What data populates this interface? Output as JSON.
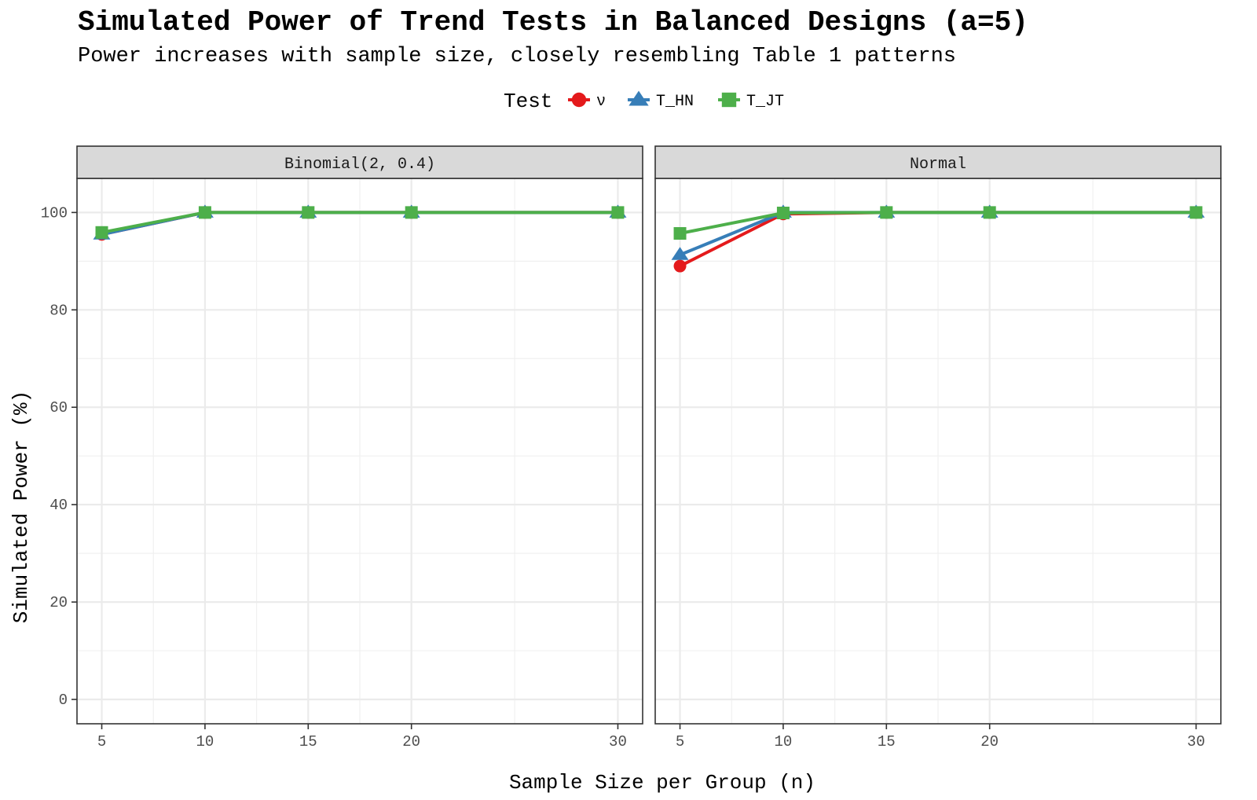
{
  "chart_data": {
    "type": "line",
    "title": "Simulated Power of Trend Tests in Balanced Designs (a=5)",
    "subtitle": "Power increases with sample size, closely resembling Table 1 patterns",
    "xlabel": "Sample Size per Group (n)",
    "ylabel": "Simulated Power (%)",
    "legend": {
      "title": "Test",
      "placement": "top",
      "entries": [
        {
          "label": "ν",
          "shape": "circle",
          "color": "#e41a1c"
        },
        {
          "label": "T_HN",
          "shape": "triangle",
          "color": "#377eb8"
        },
        {
          "label": "T_JT",
          "shape": "square",
          "color": "#4daf4a"
        }
      ]
    },
    "x_ticks": [
      5,
      10,
      15,
      20,
      30
    ],
    "xlim": [
      3.8,
      31.2
    ],
    "y_ticks": [
      0,
      20,
      40,
      60,
      80,
      100
    ],
    "ylim": [
      -5,
      107
    ],
    "grid": true,
    "panels": [
      {
        "label": "Binomial(2, 0.4)",
        "x": [
          5,
          10,
          15,
          20,
          30
        ],
        "series": [
          {
            "name": "ν",
            "values": [
              95.5,
              100,
              100,
              100,
              100
            ]
          },
          {
            "name": "T_HN",
            "values": [
              95.5,
              100,
              100,
              100,
              100
            ]
          },
          {
            "name": "T_JT",
            "values": [
              95.9,
              100,
              100,
              100,
              100
            ]
          }
        ]
      },
      {
        "label": "Normal",
        "x": [
          5,
          10,
          15,
          20,
          30
        ],
        "series": [
          {
            "name": "ν",
            "values": [
              89.0,
              99.7,
              100,
              100,
              100
            ]
          },
          {
            "name": "T_HN",
            "values": [
              91.3,
              100,
              100,
              100,
              100
            ]
          },
          {
            "name": "T_JT",
            "values": [
              95.7,
              99.9,
              100,
              100,
              100
            ]
          }
        ]
      }
    ]
  }
}
